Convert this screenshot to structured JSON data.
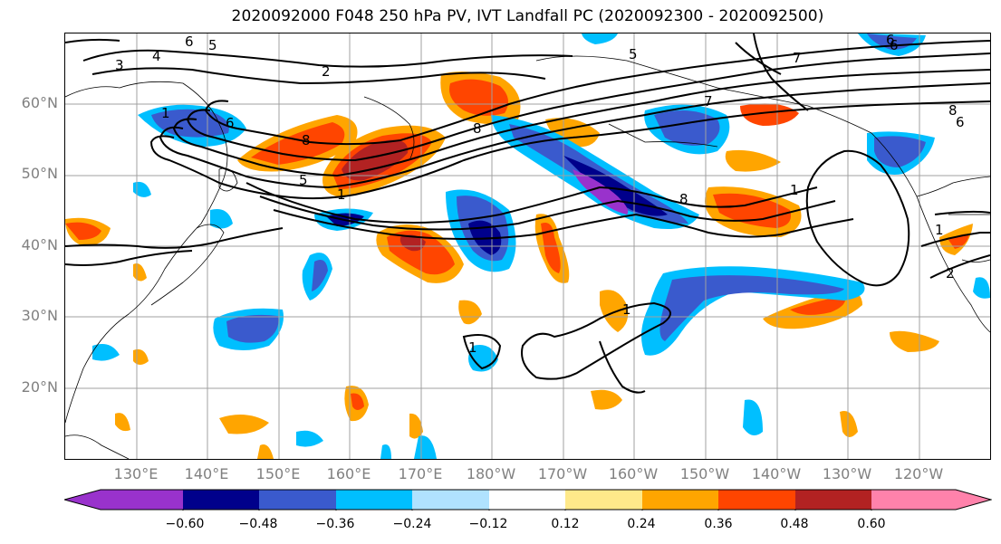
{
  "title": "2020092000 F048 250 hPa PV, IVT Landfall PC (2020092300 - 2020092500)",
  "lat_labels": [
    "60°N",
    "50°N",
    "40°N",
    "30°N",
    "20°N"
  ],
  "lon_labels": [
    "130°E",
    "140°E",
    "150°E",
    "160°E",
    "170°E",
    "180°W",
    "170°W",
    "160°W",
    "150°W",
    "140°W",
    "130°W",
    "120°W"
  ],
  "contour_labels": [
    "3",
    "4",
    "6",
    "5",
    "2",
    "5",
    "6",
    "7",
    "8",
    "6",
    "1",
    "8",
    "8",
    "5",
    "1",
    "8",
    "1",
    "1",
    "1",
    "1",
    "2",
    "6",
    "7",
    "6"
  ],
  "colorbar": {
    "colors": [
      "#9932cc",
      "#00008b",
      "#3a5acd",
      "#00bfff",
      "#b0e2ff",
      "#ffffff",
      "#ffe98a",
      "#ffa500",
      "#ff4500",
      "#b22222",
      "#ff82ab"
    ],
    "tick_labels": [
      "−0.60",
      "−0.48",
      "−0.36",
      "−0.24",
      "−0.12",
      "0.12",
      "0.24",
      "0.36",
      "0.48",
      "0.60"
    ],
    "levels": [
      -0.6,
      -0.48,
      -0.36,
      -0.24,
      -0.12,
      0.12,
      0.24,
      0.36,
      0.48,
      0.6
    ]
  },
  "colors": {
    "gridline": "#a0a0a0",
    "axis_label": "#808080",
    "contour": "#000000"
  }
}
